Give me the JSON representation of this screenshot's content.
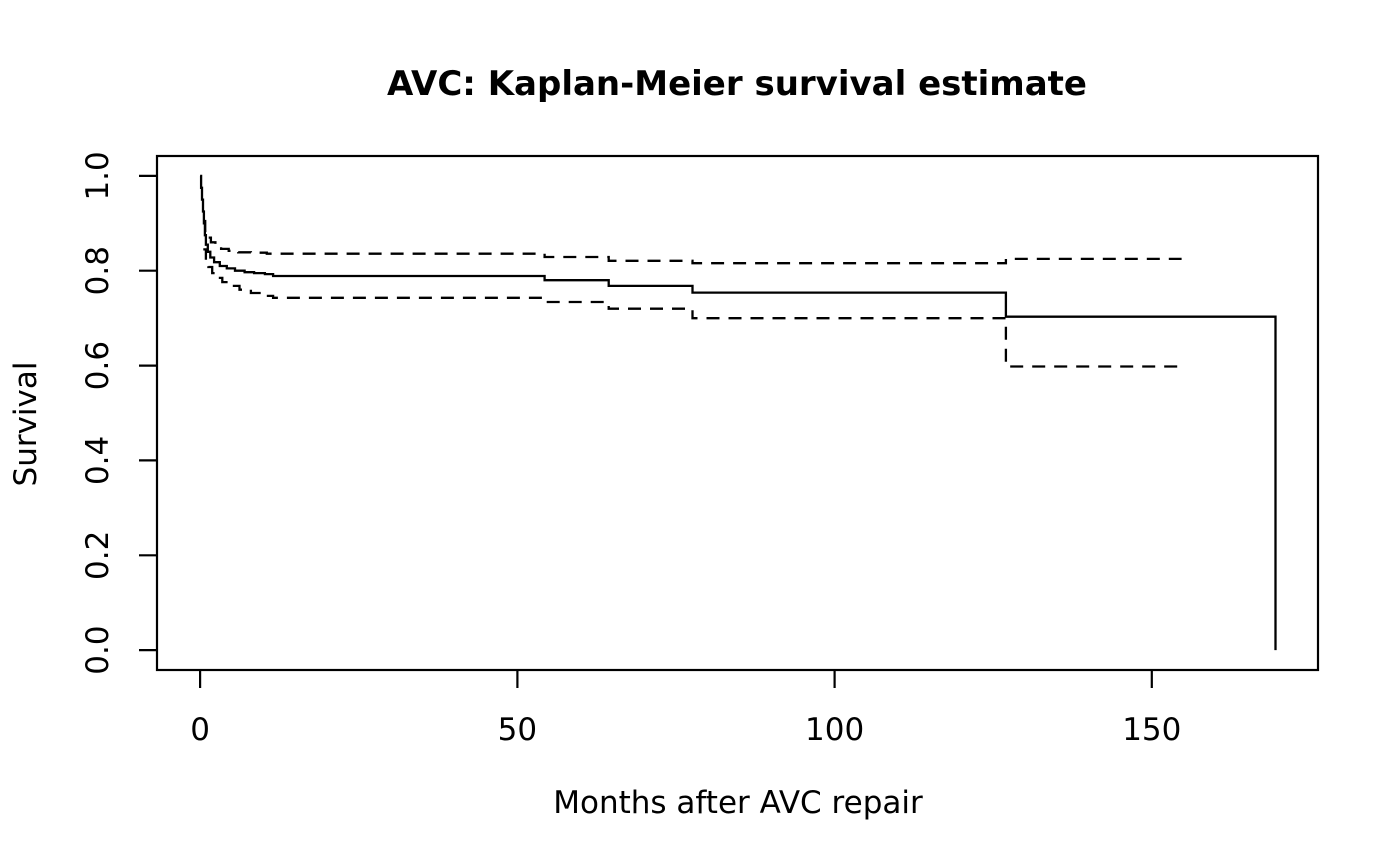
{
  "page": {
    "background": "#ffffff",
    "foreground": "#000000"
  },
  "chart_data": {
    "type": "line",
    "subtype": "kaplan-meier-step",
    "title": "AVC: Kaplan-Meier survival estimate",
    "xlabel": "Months after AVC repair",
    "ylabel": "Survival",
    "xlim": [
      -6.8,
      176.2
    ],
    "ylim": [
      -0.042,
      1.042
    ],
    "x_ticks": [
      0,
      50,
      100,
      150
    ],
    "x_tick_labels": [
      "0",
      "50",
      "100",
      "150"
    ],
    "y_ticks": [
      0.0,
      0.2,
      0.4,
      0.6,
      0.8,
      1.0
    ],
    "y_tick_labels": [
      "0.0",
      "0.2",
      "0.4",
      "0.6",
      "0.8",
      "1.0"
    ],
    "grid": false,
    "legend": "none",
    "line_color": "#000000",
    "background": "#ffffff",
    "series": [
      {
        "name": "Upper 95% CI",
        "style": "dashed",
        "end_time": 154.7,
        "points": [
          [
            0.5,
            0.905
          ],
          [
            0.8,
            0.884
          ],
          [
            1.2,
            0.87
          ],
          [
            1.7,
            0.86
          ],
          [
            2.4,
            0.852
          ],
          [
            3.3,
            0.846
          ],
          [
            4.5,
            0.842
          ],
          [
            6,
            0.839
          ],
          [
            8,
            0.838
          ],
          [
            10.5,
            0.836
          ],
          [
            54.3,
            0.829
          ],
          [
            64.4,
            0.821
          ],
          [
            77.6,
            0.816
          ],
          [
            127,
            0.825
          ]
        ]
      },
      {
        "name": "Lower 95% CI",
        "style": "dashed",
        "end_time": 154.7,
        "points": [
          [
            0.5,
            0.845
          ],
          [
            0.9,
            0.822
          ],
          [
            1.3,
            0.808
          ],
          [
            1.9,
            0.795
          ],
          [
            2.6,
            0.785
          ],
          [
            3.5,
            0.776
          ],
          [
            4.7,
            0.768
          ],
          [
            6.2,
            0.76
          ],
          [
            8,
            0.753
          ],
          [
            10,
            0.747
          ],
          [
            11.5,
            0.743
          ],
          [
            54.3,
            0.734
          ],
          [
            64.4,
            0.72
          ],
          [
            77.6,
            0.7
          ],
          [
            127,
            0.598
          ]
        ]
      },
      {
        "name": "KM survival estimate",
        "style": "solid",
        "end_time": 169.5,
        "points": [
          [
            0,
            1.0
          ],
          [
            0.15,
            0.975
          ],
          [
            0.3,
            0.95
          ],
          [
            0.45,
            0.925
          ],
          [
            0.6,
            0.9
          ],
          [
            0.75,
            0.875
          ],
          [
            0.9,
            0.855
          ],
          [
            1.2,
            0.84
          ],
          [
            1.6,
            0.828
          ],
          [
            2.2,
            0.818
          ],
          [
            3.1,
            0.81
          ],
          [
            4.2,
            0.805
          ],
          [
            5.5,
            0.8
          ],
          [
            7,
            0.797
          ],
          [
            8.5,
            0.795
          ],
          [
            10.2,
            0.793
          ],
          [
            11.5,
            0.789
          ],
          [
            54.3,
            0.78
          ],
          [
            64.4,
            0.768
          ],
          [
            77.6,
            0.754
          ],
          [
            127,
            0.703
          ],
          [
            169.5,
            0.0
          ]
        ]
      }
    ]
  }
}
